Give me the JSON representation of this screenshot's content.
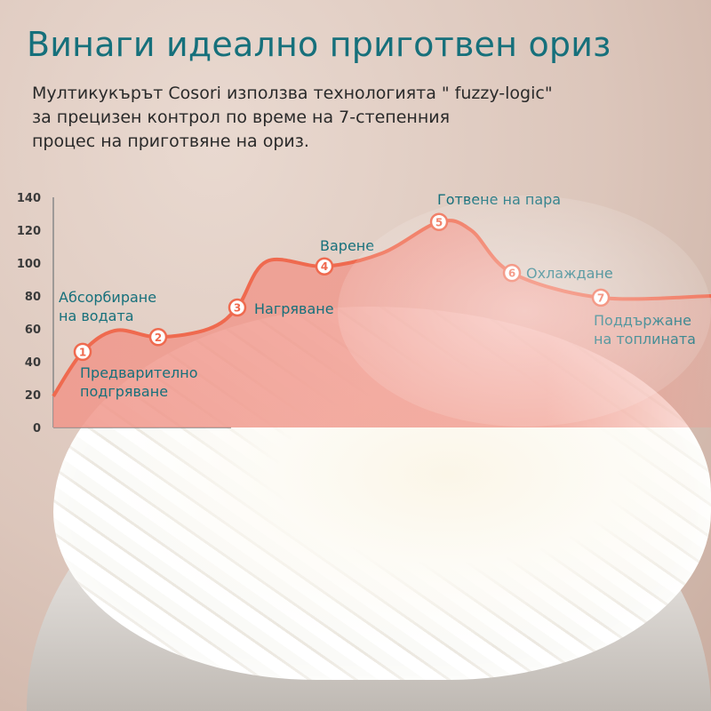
{
  "header": {
    "title": "Винаги идеално приготвен ориз",
    "subtitle_lines": [
      "Мултикукърът Cosori използва технологията \" fuzzy-logic\"",
      "за прецизен контрол по време на 7-степенния",
      "процес на приготвяне на ориз."
    ]
  },
  "colors": {
    "accent_text": "#16707b",
    "curve": "#ef6a4f",
    "fill": "#f0968a"
  },
  "chart_data": {
    "type": "area",
    "title": "",
    "xlabel": "",
    "ylabel": "",
    "ylim": [
      0,
      140
    ],
    "yticks": [
      "0",
      "20",
      "40",
      "60",
      "80",
      "100",
      "120",
      "140"
    ],
    "grid": false,
    "stages": [
      {
        "number": "1",
        "label": [
          "Предварително",
          "подгряване"
        ],
        "value": 46
      },
      {
        "number": "2",
        "label": [
          "Абсорбиране",
          "на водата"
        ],
        "value": 55
      },
      {
        "number": "3",
        "label": [
          "Нагряване"
        ],
        "value": 73
      },
      {
        "number": "4",
        "label": [
          "Варене"
        ],
        "value": 98
      },
      {
        "number": "5",
        "label": [
          "Готвене на пара"
        ],
        "value": 125
      },
      {
        "number": "6",
        "label": [
          "Охлаждане"
        ],
        "value": 94
      },
      {
        "number": "7",
        "label": [
          "Поддържане",
          "на топлината"
        ],
        "value": 79
      }
    ]
  }
}
